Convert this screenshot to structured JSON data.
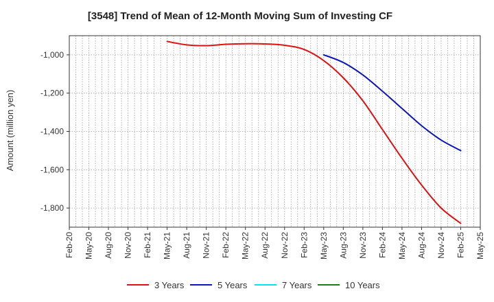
{
  "chart_data": {
    "type": "line",
    "title": "[3548]  Trend of Mean of 12-Month Moving Sum of Investing CF",
    "xlabel": "",
    "ylabel": "Amount (million yen)",
    "ylim": [
      -1900,
      -900
    ],
    "yticks": [
      -1000,
      -1200,
      -1400,
      -1600,
      -1800
    ],
    "ytick_labels": [
      "-1,000",
      "-1,200",
      "-1,400",
      "-1,600",
      "-1,800"
    ],
    "x_tick_labels": [
      "Feb-20",
      "May-20",
      "Aug-20",
      "Nov-20",
      "Feb-21",
      "May-21",
      "Aug-21",
      "Nov-21",
      "Feb-22",
      "May-22",
      "Aug-22",
      "Nov-22",
      "Feb-23",
      "May-23",
      "Aug-23",
      "Nov-23",
      "Feb-24",
      "May-24",
      "Aug-24",
      "Nov-24",
      "Feb-25",
      "May-25"
    ],
    "grid": true,
    "legend_position": "bottom",
    "series": [
      {
        "name": "3 Years",
        "color": "#dd1111",
        "x": [
          5,
          6,
          7,
          8,
          9,
          10,
          11,
          12,
          13,
          14,
          15,
          16,
          17,
          18,
          19,
          20
        ],
        "values": [
          -930,
          -948,
          -952,
          -945,
          -942,
          -943,
          -950,
          -972,
          -1030,
          -1120,
          -1240,
          -1390,
          -1540,
          -1680,
          -1800,
          -1880
        ]
      },
      {
        "name": "5 Years",
        "color": "#0b16b8",
        "x": [
          13,
          14,
          15,
          16,
          17,
          18,
          19,
          20
        ],
        "values": [
          -1000,
          -1040,
          -1105,
          -1190,
          -1280,
          -1370,
          -1445,
          -1500
        ]
      },
      {
        "name": "7 Years",
        "color": "#00e5ee",
        "x": [],
        "values": []
      },
      {
        "name": "10 Years",
        "color": "#1a7d1a",
        "x": [],
        "values": []
      }
    ]
  }
}
